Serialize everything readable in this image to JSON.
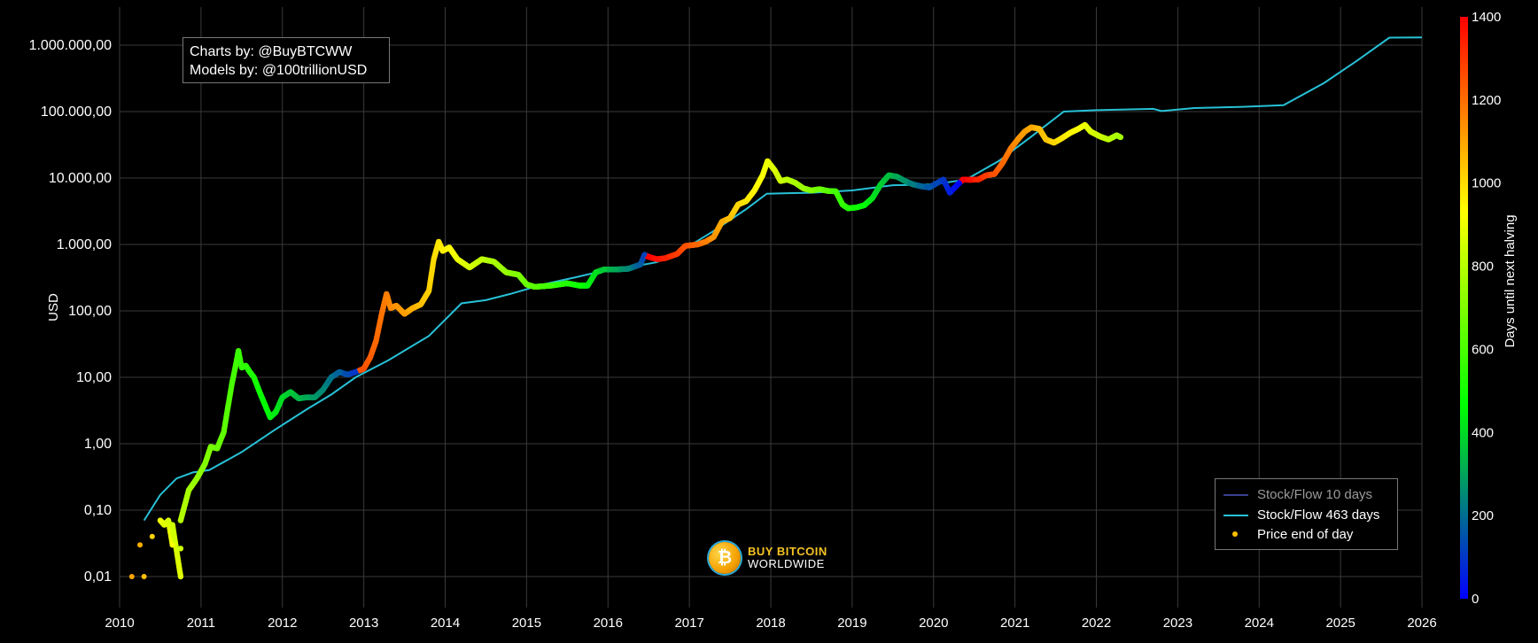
{
  "credits": {
    "line1": "Charts by: @BuyBTCWW",
    "line2": "Models by: @100trillionUSD"
  },
  "legend": {
    "sf10": "Stock/Flow 10 days",
    "sf463": "Stock/Flow 463 days",
    "price": "Price end of day"
  },
  "logo": {
    "top": "BUY BITCOIN",
    "bottom": "WORLDWIDE",
    "coin_glyph": "₿"
  },
  "chart_data": {
    "type": "scatter",
    "title": "",
    "xlabel": "",
    "ylabel": "USD",
    "yscale": "log",
    "xlim": [
      2010,
      2026
    ],
    "ylim": [
      0.01,
      1000000
    ],
    "grid": true,
    "legend_position": "bottom-right",
    "y_ticks": [
      {
        "value": 0.01,
        "label": "0,01"
      },
      {
        "value": 0.1,
        "label": "0,10"
      },
      {
        "value": 1,
        "label": "1,00"
      },
      {
        "value": 10,
        "label": "10,00"
      },
      {
        "value": 100,
        "label": "100,00"
      },
      {
        "value": 1000,
        "label": "1.000,00"
      },
      {
        "value": 10000,
        "label": "10.000,00"
      },
      {
        "value": 100000,
        "label": "100.000,00"
      },
      {
        "value": 1000000,
        "label": "1.000.000,00"
      }
    ],
    "x_ticks": [
      "2010",
      "2011",
      "2012",
      "2013",
      "2014",
      "2015",
      "2016",
      "2017",
      "2018",
      "2019",
      "2020",
      "2021",
      "2022",
      "2023",
      "2024",
      "2025",
      "2026"
    ],
    "colorbar": {
      "label": "Days until next halving",
      "range": [
        0,
        1400
      ],
      "ticks": [
        0,
        200,
        400,
        600,
        800,
        1000,
        1200,
        1400
      ],
      "colorscale": [
        "#0000ff",
        "#00ff00",
        "#ffff00",
        "#ff0000"
      ]
    },
    "series": [
      {
        "name": "Stock/Flow 463 days",
        "type": "line",
        "color": "#27c1d6",
        "points": [
          [
            2010.3,
            0.07
          ],
          [
            2010.5,
            0.17
          ],
          [
            2010.7,
            0.3
          ],
          [
            2010.9,
            0.37
          ],
          [
            2011.1,
            0.4
          ],
          [
            2011.5,
            0.75
          ],
          [
            2011.9,
            1.6
          ],
          [
            2012.3,
            3.3
          ],
          [
            2012.6,
            5.5
          ],
          [
            2012.9,
            10
          ],
          [
            2013.3,
            18
          ],
          [
            2013.8,
            42
          ],
          [
            2014.2,
            130
          ],
          [
            2014.5,
            145
          ],
          [
            2014.8,
            180
          ],
          [
            2015.2,
            250
          ],
          [
            2015.6,
            320
          ],
          [
            2015.9,
            390
          ],
          [
            2016.2,
            440
          ],
          [
            2016.6,
            540
          ],
          [
            2016.9,
            800
          ],
          [
            2017.3,
            1600
          ],
          [
            2017.7,
            3400
          ],
          [
            2017.95,
            5800
          ],
          [
            2018.5,
            6000
          ],
          [
            2019.0,
            6500
          ],
          [
            2019.5,
            7800
          ],
          [
            2020.0,
            8000
          ],
          [
            2020.4,
            9500
          ],
          [
            2020.8,
            18000
          ],
          [
            2021.2,
            42000
          ],
          [
            2021.6,
            100000
          ],
          [
            2022.0,
            105000
          ],
          [
            2022.7,
            110000
          ],
          [
            2022.8,
            102000
          ],
          [
            2023.2,
            113000
          ],
          [
            2023.8,
            118000
          ],
          [
            2024.3,
            125000
          ],
          [
            2024.8,
            270000
          ],
          [
            2025.2,
            580000
          ],
          [
            2025.6,
            1300000
          ],
          [
            2026.0,
            1310000
          ]
        ]
      },
      {
        "name": "Price end of day",
        "type": "scatter",
        "points": [
          [
            2010.15,
            0.01,
            1100
          ],
          [
            2010.3,
            0.01,
            1050
          ],
          [
            2010.75,
            0.01,
            880
          ],
          [
            2010.25,
            0.03,
            1080
          ],
          [
            2010.65,
            0.03,
            920
          ],
          [
            2010.4,
            0.04,
            1010
          ],
          [
            2010.5,
            0.07,
            900
          ],
          [
            2010.55,
            0.06,
            880
          ],
          [
            2010.6,
            0.07,
            860
          ],
          [
            2010.65,
            0.06,
            840
          ],
          [
            2010.75,
            0.07,
            800
          ],
          [
            2010.85,
            0.2,
            770
          ],
          [
            2010.95,
            0.3,
            740
          ],
          [
            2011.05,
            0.5,
            710
          ],
          [
            2011.12,
            0.9,
            690
          ],
          [
            2011.2,
            0.85,
            665
          ],
          [
            2011.28,
            1.5,
            640
          ],
          [
            2011.33,
            3.5,
            620
          ],
          [
            2011.38,
            8,
            600
          ],
          [
            2011.43,
            16,
            585
          ],
          [
            2011.46,
            25,
            575
          ],
          [
            2011.5,
            14,
            560
          ],
          [
            2011.55,
            15,
            545
          ],
          [
            2011.6,
            12,
            530
          ],
          [
            2011.65,
            10,
            515
          ],
          [
            2011.72,
            6,
            495
          ],
          [
            2011.78,
            4,
            470
          ],
          [
            2011.85,
            2.5,
            450
          ],
          [
            2011.92,
            3,
            430
          ],
          [
            2012.0,
            5,
            400
          ],
          [
            2012.1,
            6,
            370
          ],
          [
            2012.2,
            4.8,
            340
          ],
          [
            2012.3,
            5,
            310
          ],
          [
            2012.4,
            5,
            280
          ],
          [
            2012.5,
            6.5,
            250
          ],
          [
            2012.6,
            10,
            210
          ],
          [
            2012.7,
            12,
            180
          ],
          [
            2012.8,
            11,
            140
          ],
          [
            2012.9,
            12,
            100
          ],
          [
            2013.0,
            13.5,
            1250
          ],
          [
            2013.08,
            20,
            1230
          ],
          [
            2013.15,
            35,
            1210
          ],
          [
            2013.22,
            90,
            1190
          ],
          [
            2013.28,
            180,
            1170
          ],
          [
            2013.33,
            110,
            1150
          ],
          [
            2013.4,
            120,
            1130
          ],
          [
            2013.5,
            90,
            1110
          ],
          [
            2013.6,
            110,
            1080
          ],
          [
            2013.7,
            125,
            1050
          ],
          [
            2013.8,
            200,
            1020
          ],
          [
            2013.86,
            600,
            1000
          ],
          [
            2013.92,
            1100,
            980
          ],
          [
            2013.97,
            800,
            960
          ],
          [
            2014.05,
            900,
            940
          ],
          [
            2014.15,
            600,
            900
          ],
          [
            2014.3,
            450,
            860
          ],
          [
            2014.45,
            600,
            820
          ],
          [
            2014.6,
            550,
            780
          ],
          [
            2014.75,
            380,
            740
          ],
          [
            2014.9,
            350,
            700
          ],
          [
            2015.0,
            250,
            660
          ],
          [
            2015.1,
            230,
            630
          ],
          [
            2015.3,
            240,
            580
          ],
          [
            2015.5,
            260,
            530
          ],
          [
            2015.65,
            240,
            490
          ],
          [
            2015.75,
            240,
            450
          ],
          [
            2015.85,
            380,
            410
          ],
          [
            2015.95,
            420,
            370
          ],
          [
            2016.1,
            420,
            310
          ],
          [
            2016.25,
            430,
            250
          ],
          [
            2016.4,
            500,
            170
          ],
          [
            2016.45,
            700,
            120
          ],
          [
            2016.5,
            650,
            1400
          ],
          [
            2016.6,
            600,
            1370
          ],
          [
            2016.7,
            620,
            1340
          ],
          [
            2016.85,
            720,
            1290
          ],
          [
            2016.95,
            950,
            1250
          ],
          [
            2017.1,
            1000,
            1210
          ],
          [
            2017.2,
            1100,
            1170
          ],
          [
            2017.3,
            1300,
            1130
          ],
          [
            2017.4,
            2200,
            1090
          ],
          [
            2017.5,
            2500,
            1050
          ],
          [
            2017.6,
            4000,
            1010
          ],
          [
            2017.7,
            4500,
            980
          ],
          [
            2017.8,
            6500,
            950
          ],
          [
            2017.9,
            11000,
            920
          ],
          [
            2017.96,
            18000,
            900
          ],
          [
            2018.05,
            13000,
            870
          ],
          [
            2018.12,
            9000,
            840
          ],
          [
            2018.2,
            9500,
            810
          ],
          [
            2018.3,
            8500,
            780
          ],
          [
            2018.4,
            7000,
            750
          ],
          [
            2018.5,
            6500,
            710
          ],
          [
            2018.6,
            6800,
            670
          ],
          [
            2018.7,
            6400,
            630
          ],
          [
            2018.8,
            6300,
            590
          ],
          [
            2018.88,
            4000,
            560
          ],
          [
            2018.95,
            3500,
            530
          ],
          [
            2019.05,
            3600,
            490
          ],
          [
            2019.15,
            3900,
            460
          ],
          [
            2019.25,
            5000,
            420
          ],
          [
            2019.35,
            8000,
            380
          ],
          [
            2019.45,
            11000,
            350
          ],
          [
            2019.55,
            10500,
            310
          ],
          [
            2019.65,
            9000,
            270
          ],
          [
            2019.75,
            8000,
            230
          ],
          [
            2019.85,
            7500,
            190
          ],
          [
            2019.95,
            7200,
            160
          ],
          [
            2020.05,
            8500,
            130
          ],
          [
            2020.12,
            9500,
            100
          ],
          [
            2020.2,
            6000,
            60
          ],
          [
            2020.25,
            7000,
            30
          ],
          [
            2020.32,
            8500,
            10
          ],
          [
            2020.36,
            9500,
            1400
          ],
          [
            2020.45,
            9400,
            1370
          ],
          [
            2020.55,
            9500,
            1330
          ],
          [
            2020.65,
            11000,
            1290
          ],
          [
            2020.75,
            11500,
            1250
          ],
          [
            2020.85,
            17000,
            1210
          ],
          [
            2020.95,
            28000,
            1170
          ],
          [
            2021.05,
            40000,
            1130
          ],
          [
            2021.12,
            50000,
            1110
          ],
          [
            2021.2,
            58000,
            1090
          ],
          [
            2021.3,
            55000,
            1060
          ],
          [
            2021.38,
            38000,
            1040
          ],
          [
            2021.48,
            34000,
            1010
          ],
          [
            2021.58,
            40000,
            980
          ],
          [
            2021.68,
            48000,
            950
          ],
          [
            2021.78,
            55000,
            920
          ],
          [
            2021.86,
            63000,
            900
          ],
          [
            2021.93,
            50000,
            870
          ],
          [
            2022.05,
            42000,
            840
          ],
          [
            2022.15,
            38000,
            810
          ],
          [
            2022.25,
            44000,
            780
          ],
          [
            2022.3,
            41000,
            760
          ]
        ]
      }
    ]
  }
}
